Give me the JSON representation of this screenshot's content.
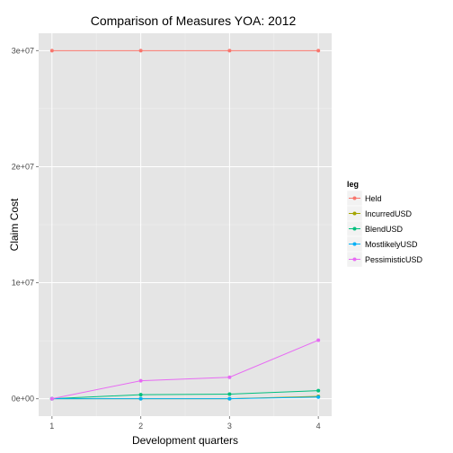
{
  "chart_data": {
    "type": "line",
    "title": "Comparison of Measures  YOA: 2012",
    "xlabel": "Development quarters",
    "ylabel": "Claim Cost",
    "x": [
      1,
      2,
      3,
      4
    ],
    "x_ticks": [
      "1",
      "2",
      "3",
      "4"
    ],
    "y_ticks": [
      {
        "value": 0,
        "label": "0e+00"
      },
      {
        "value": 10000000,
        "label": "1e+07"
      },
      {
        "value": 20000000,
        "label": "2e+07"
      },
      {
        "value": 30000000,
        "label": "3e+07"
      }
    ],
    "xlim": [
      0.85,
      4.15
    ],
    "ylim": [
      -1500000,
      31500000
    ],
    "grid": true,
    "legend": {
      "title": "leg",
      "position": "right"
    },
    "series": [
      {
        "name": "Held",
        "color": "#F8766D",
        "values": [
          30000000,
          30000000,
          30000000,
          30000000
        ]
      },
      {
        "name": "IncurredUSD",
        "color": "#A3A500",
        "values": [
          0,
          0,
          0,
          200000
        ]
      },
      {
        "name": "BlendUSD",
        "color": "#00BF7D",
        "values": [
          0,
          350000,
          400000,
          700000
        ]
      },
      {
        "name": "MostlikelyUSD",
        "color": "#00B0F6",
        "values": [
          0,
          0,
          0,
          150000
        ]
      },
      {
        "name": "PessimisticUSD",
        "color": "#E76BF3",
        "values": [
          0,
          1550000,
          1850000,
          5050000
        ]
      }
    ]
  }
}
